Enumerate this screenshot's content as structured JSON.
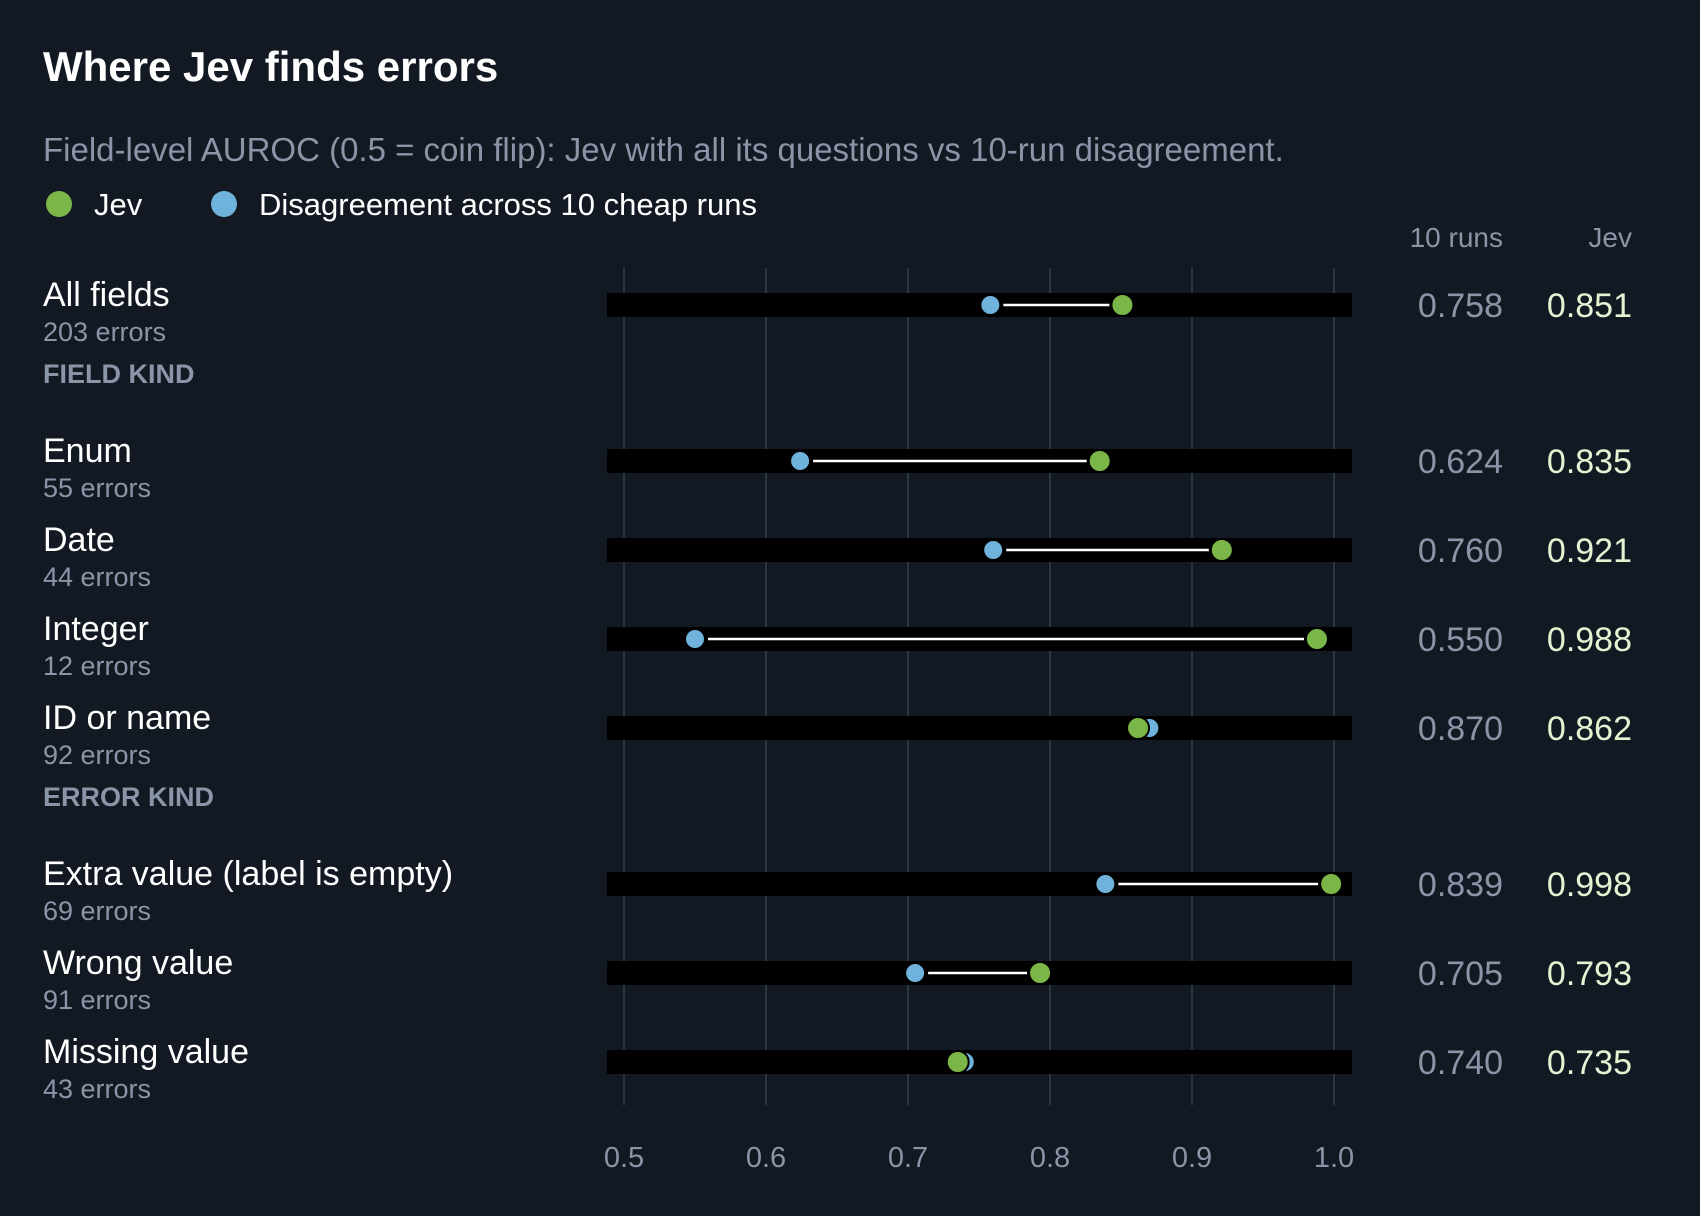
{
  "chart_data": {
    "type": "dot-range",
    "title": "Where Jev finds errors",
    "subtitle": "Field-level AUROC (0.5 = coin flip): Jev with all its questions vs 10-run disagreement.",
    "legend": [
      {
        "key": "jev",
        "label": "Jev",
        "color": "#7ab648"
      },
      {
        "key": "runs",
        "label": "Disagreement across 10 cheap runs",
        "color": "#6fb3dc"
      }
    ],
    "legend_placement": "top-left",
    "columns": {
      "runs": "10 runs",
      "jev": "Jev"
    },
    "xlim": [
      0.5,
      1.0
    ],
    "xticks": [
      0.5,
      0.6,
      0.7,
      0.8,
      0.9,
      1.0
    ],
    "xtick_labels": [
      "0.5",
      "0.6",
      "0.7",
      "0.8",
      "0.9",
      "1.0"
    ],
    "grid": true,
    "groups": [
      {
        "label": "",
        "rows": [
          {
            "label": "All fields",
            "sub": "203 errors",
            "runs": 0.758,
            "jev": 0.851,
            "runs_text": "0.758",
            "jev_text": "0.851"
          }
        ]
      },
      {
        "label": "FIELD KIND",
        "rows": [
          {
            "label": "Enum",
            "sub": "55 errors",
            "runs": 0.624,
            "jev": 0.835,
            "runs_text": "0.624",
            "jev_text": "0.835"
          },
          {
            "label": "Date",
            "sub": "44 errors",
            "runs": 0.76,
            "jev": 0.921,
            "runs_text": "0.760",
            "jev_text": "0.921"
          },
          {
            "label": "Integer",
            "sub": "12 errors",
            "runs": 0.55,
            "jev": 0.988,
            "runs_text": "0.550",
            "jev_text": "0.988"
          },
          {
            "label": "ID or name",
            "sub": "92 errors",
            "runs": 0.87,
            "jev": 0.862,
            "runs_text": "0.870",
            "jev_text": "0.862"
          }
        ]
      },
      {
        "label": "ERROR KIND",
        "rows": [
          {
            "label": "Extra value (label is empty)",
            "sub": "69 errors",
            "runs": 0.839,
            "jev": 0.998,
            "runs_text": "0.839",
            "jev_text": "0.998"
          },
          {
            "label": "Wrong value",
            "sub": "91 errors",
            "runs": 0.705,
            "jev": 0.793,
            "runs_text": "0.705",
            "jev_text": "0.793"
          },
          {
            "label": "Missing value",
            "sub": "43 errors",
            "runs": 0.74,
            "jev": 0.735,
            "runs_text": "0.740",
            "jev_text": "0.735"
          }
        ]
      }
    ]
  }
}
